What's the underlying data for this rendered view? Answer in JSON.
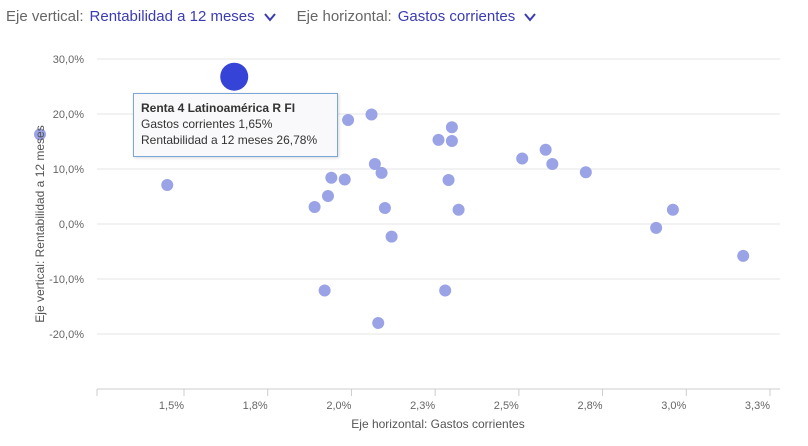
{
  "controls": {
    "vertical": {
      "label": "Eje vertical:",
      "value": "Rentabilidad a 12 meses"
    },
    "horizontal": {
      "label": "Eje horizontal:",
      "value": "Gastos corrientes"
    },
    "dropdown_icon": "chevron-down-icon"
  },
  "colors": {
    "accent": "#3b3bb5",
    "point": "#9aa3e6",
    "highlight": "#3544d6",
    "grid": "#e6e6e6",
    "tooltip_border": "#7aa7d8"
  },
  "tooltip": {
    "title": "Renta 4 Latinoamérica R FI",
    "line1": "Gastos corrientes 1,65%",
    "line2": "Rentabilidad a 12 meses 26,78%"
  },
  "chart_data": {
    "type": "scatter",
    "xlabel": "Eje horizontal: Gastos corrientes",
    "ylabel": "Eje vertical: Rentabilidad a 12 meses",
    "xlim": [
      1.0,
      3.25
    ],
    "ylim": [
      -30,
      30
    ],
    "x_ticks": [
      {
        "value": 1.5,
        "label": "1,5%"
      },
      {
        "value": 1.75,
        "label": "1,8%"
      },
      {
        "value": 2.0,
        "label": "2,0%"
      },
      {
        "value": 2.25,
        "label": "2,3%"
      },
      {
        "value": 2.5,
        "label": "2,5%"
      },
      {
        "value": 2.75,
        "label": "2,8%"
      },
      {
        "value": 3.0,
        "label": "3,0%"
      },
      {
        "value": 3.25,
        "label": "3,3%"
      }
    ],
    "y_ticks": [
      {
        "value": 30,
        "label": "30,0%"
      },
      {
        "value": 20,
        "label": "20,0%"
      },
      {
        "value": 10,
        "label": "10,0%"
      },
      {
        "value": 0,
        "label": "0,0%"
      },
      {
        "value": -10,
        "label": "-10,0%"
      },
      {
        "value": -20,
        "label": "-20,0%"
      }
    ],
    "grid": true,
    "highlight": {
      "x": 1.65,
      "y": 26.78
    },
    "points": [
      {
        "x": 1.07,
        "y": 16.3
      },
      {
        "x": 1.45,
        "y": 7.1
      },
      {
        "x": 1.84,
        "y": 15.0
      },
      {
        "x": 1.89,
        "y": 3.1
      },
      {
        "x": 1.92,
        "y": -12.1
      },
      {
        "x": 1.93,
        "y": 5.1
      },
      {
        "x": 1.94,
        "y": 8.4
      },
      {
        "x": 1.98,
        "y": 8.1
      },
      {
        "x": 1.99,
        "y": 18.9
      },
      {
        "x": 2.06,
        "y": 19.9
      },
      {
        "x": 2.07,
        "y": 10.9
      },
      {
        "x": 2.08,
        "y": -18.0
      },
      {
        "x": 2.09,
        "y": 9.3
      },
      {
        "x": 2.1,
        "y": 2.9
      },
      {
        "x": 2.12,
        "y": -2.3
      },
      {
        "x": 2.26,
        "y": 15.3
      },
      {
        "x": 2.28,
        "y": -12.1
      },
      {
        "x": 2.29,
        "y": 8.0
      },
      {
        "x": 2.3,
        "y": 17.6
      },
      {
        "x": 2.3,
        "y": 15.1
      },
      {
        "x": 2.32,
        "y": 2.6
      },
      {
        "x": 2.51,
        "y": 11.9
      },
      {
        "x": 2.58,
        "y": 13.5
      },
      {
        "x": 2.6,
        "y": 10.9
      },
      {
        "x": 2.7,
        "y": 9.4
      },
      {
        "x": 2.91,
        "y": -0.7
      },
      {
        "x": 2.96,
        "y": 2.6
      },
      {
        "x": 3.17,
        "y": -5.8
      }
    ]
  }
}
